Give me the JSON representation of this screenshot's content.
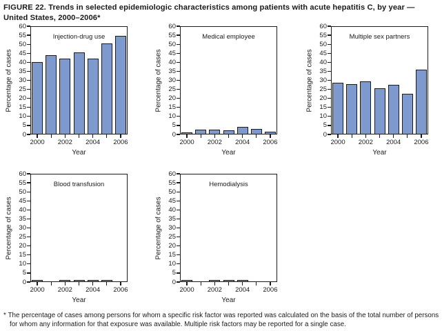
{
  "figure": {
    "title": "FIGURE 22. Trends in selected epidemiologic characteristics among patients with acute hepatitis C, by year — United States, 2000–2006*",
    "footnote_marker": "*",
    "footnote": "The percentage of cases among persons for whom a specific risk factor was reported was calculated on the basis of the total number of persons for whom any information for that exposure was available. Multiple risk factors may be reported for a single case."
  },
  "colors": {
    "bar_fill": "#7d99ce",
    "bar_outline": "#1a1a1a",
    "axis": "#1a1a1a",
    "text": "#1a1a1a"
  },
  "chart_data": [
    {
      "type": "bar",
      "title": "Injection-drug use",
      "xlabel": "Year",
      "ylabel": "Percentage of cases",
      "ylim": [
        0,
        60
      ],
      "ytick_step": 5,
      "grid": false,
      "legend": "none",
      "categories": [
        "2000",
        "2001",
        "2002",
        "2003",
        "2004",
        "2005",
        "2006"
      ],
      "xtick_labels": [
        "2000",
        "2002",
        "2004",
        "2006"
      ],
      "values": [
        40,
        44,
        42,
        45.5,
        42,
        50.5,
        54.5
      ]
    },
    {
      "type": "bar",
      "title": "Medical employee",
      "xlabel": "Year",
      "ylabel": "Percentage of cases",
      "ylim": [
        0,
        60
      ],
      "ytick_step": 5,
      "grid": false,
      "legend": "none",
      "categories": [
        "2000",
        "2001",
        "2002",
        "2003",
        "2004",
        "2005",
        "2006"
      ],
      "xtick_labels": [
        "2000",
        "2002",
        "2004",
        "2006"
      ],
      "values": [
        0.8,
        2.7,
        2.7,
        2.4,
        4.3,
        3.2,
        1.6
      ]
    },
    {
      "type": "bar",
      "title": "Multiple sex partners",
      "xlabel": "Year",
      "ylabel": "Percentage of cases",
      "ylim": [
        0,
        60
      ],
      "ytick_step": 5,
      "grid": false,
      "legend": "none",
      "categories": [
        "2000",
        "2001",
        "2002",
        "2003",
        "2004",
        "2005",
        "2006"
      ],
      "xtick_labels": [
        "2000",
        "2002",
        "2004",
        "2006"
      ],
      "values": [
        28.5,
        28,
        29.5,
        25.5,
        27.5,
        22.5,
        36
      ]
    },
    {
      "type": "bar",
      "title": "Blood transfusion",
      "xlabel": "Year",
      "ylabel": "Percentage of cases",
      "ylim": [
        0,
        60
      ],
      "ytick_step": 5,
      "grid": false,
      "legend": "none",
      "categories": [
        "2000",
        "2001",
        "2002",
        "2003",
        "2004",
        "2005",
        "2006"
      ],
      "xtick_labels": [
        "2000",
        "2002",
        "2004",
        "2006"
      ],
      "values": [
        0.8,
        0,
        0.5,
        0.8,
        0.8,
        0.9,
        0
      ]
    },
    {
      "type": "bar",
      "title": "Hemodialysis",
      "xlabel": "Year",
      "ylabel": "Percentage of cases",
      "ylim": [
        0,
        60
      ],
      "ytick_step": 5,
      "grid": false,
      "legend": "none",
      "categories": [
        "2000",
        "2001",
        "2002",
        "2003",
        "2004",
        "2005",
        "2006"
      ],
      "xtick_labels": [
        "2000",
        "2002",
        "2004",
        "2006"
      ],
      "values": [
        1.3,
        0,
        0.7,
        1.3,
        0.8,
        0,
        0
      ]
    }
  ]
}
